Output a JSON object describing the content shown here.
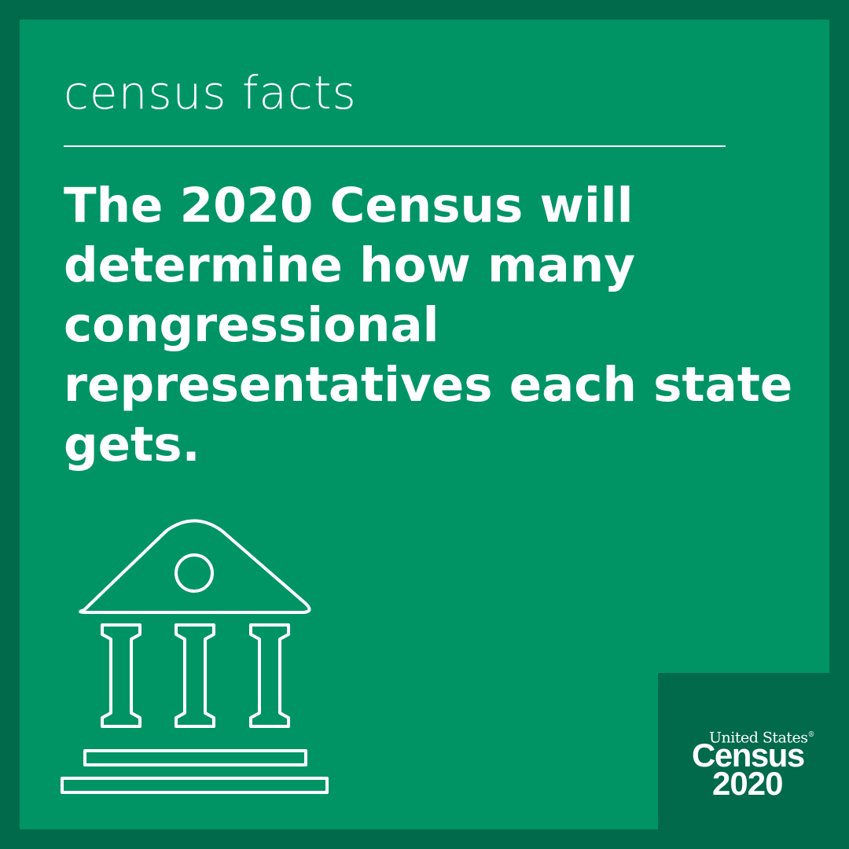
{
  "post": {
    "kicker": "census facts",
    "headline": "The 2020 Census will determine how many congressional representatives each state gets."
  },
  "icon": "government-building-icon",
  "logo": {
    "top_line": "United States",
    "registered_mark": "®",
    "wordmark": "Census",
    "year": "2020"
  },
  "colors": {
    "panel_green": "#009465",
    "frame_green": "#006a4a",
    "text": "#ffffff"
  }
}
